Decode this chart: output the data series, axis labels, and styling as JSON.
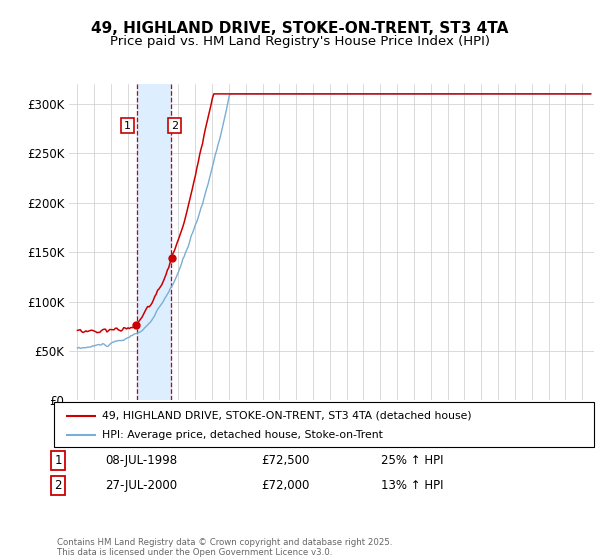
{
  "title": "49, HIGHLAND DRIVE, STOKE-ON-TRENT, ST3 4TA",
  "subtitle": "Price paid vs. HM Land Registry's House Price Index (HPI)",
  "legend_line1": "49, HIGHLAND DRIVE, STOKE-ON-TRENT, ST3 4TA (detached house)",
  "legend_line2": "HPI: Average price, detached house, Stoke-on-Trent",
  "footer": "Contains HM Land Registry data © Crown copyright and database right 2025.\nThis data is licensed under the Open Government Licence v3.0.",
  "purchase1_date": "08-JUL-1998",
  "purchase1_price": 72500,
  "purchase1_hpi": "25% ↑ HPI",
  "purchase2_date": "27-JUL-2000",
  "purchase2_price": 72000,
  "purchase2_hpi": "13% ↑ HPI",
  "purchase1_x": 1998.52,
  "purchase2_x": 2000.57,
  "hpi_color": "#7aaed4",
  "price_color": "#cc0000",
  "shade_color": "#ddeeff",
  "grid_color": "#cccccc",
  "ylim": [
    0,
    320000
  ],
  "xlim_start": 1994.5,
  "xlim_end": 2025.7,
  "title_fontsize": 11,
  "subtitle_fontsize": 9.5
}
